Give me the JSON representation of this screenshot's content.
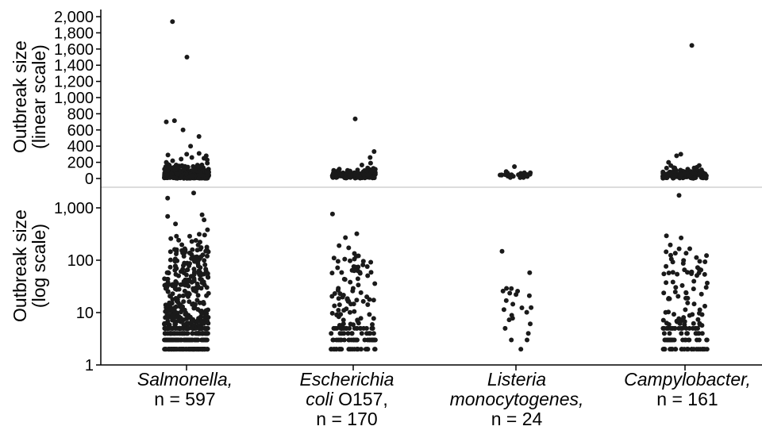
{
  "chart_data": [
    {
      "type": "scatter",
      "panel": "top",
      "ylabel_line1": "Outbreak size",
      "ylabel_line2": "(linear scale)",
      "yscale": "linear",
      "ylim": [
        0,
        2000
      ],
      "yticks": [
        0,
        200,
        400,
        600,
        800,
        1000,
        1200,
        1400,
        1600,
        1800,
        2000
      ],
      "ytick_labels": [
        "0",
        "200",
        "400",
        "600",
        "800",
        "1,000",
        "1,200",
        "1,400",
        "1,600",
        "1,800",
        "2,000"
      ],
      "grid": false,
      "categories": [
        "Salmonella, n = 597",
        "Escherichia coli O157, n = 170",
        "Listeria monocytogenes, n = 24",
        "Campylobacter, n = 161"
      ]
    },
    {
      "type": "scatter",
      "panel": "bottom",
      "ylabel_line1": "Outbreak size",
      "ylabel_line2": "(log scale)",
      "yscale": "log",
      "ylim": [
        1,
        2000
      ],
      "yticks": [
        1,
        10,
        100,
        1000
      ],
      "ytick_labels": [
        "1",
        "10",
        "100",
        "1,000"
      ],
      "grid": false,
      "categories": [
        "Salmonella, n = 597",
        "Escherichia coli O157, n = 170",
        "Listeria monocytogenes, n = 24",
        "Campylobacter, n = 161"
      ]
    }
  ],
  "categories": [
    {
      "name": "Salmonella,",
      "count_label": "n = 597",
      "n": 597,
      "max_outbreaks": [
        1939,
        1500,
        715,
        700,
        600,
        520,
        400,
        310,
        300,
        290,
        280,
        260,
        250,
        240,
        230,
        220,
        200,
        190,
        180,
        170
      ]
    },
    {
      "name_line1": "Escherichia",
      "name_line2": "coli",
      "name_suffix": "O157,",
      "count_label": "n = 170",
      "n": 170,
      "max_outbreaks": [
        736,
        333,
        260,
        190,
        130,
        100,
        90,
        80,
        75,
        70,
        65,
        60
      ]
    },
    {
      "name_line1": "Listeria",
      "name_line2": "monocytogenes,",
      "count_label": "n = 24",
      "n": 24,
      "values": [
        147,
        55,
        30,
        28,
        27,
        26,
        24,
        22,
        20,
        17,
        14,
        13,
        12,
        11,
        10,
        9,
        8,
        7,
        6,
        5,
        4,
        3,
        3,
        2
      ]
    },
    {
      "name": "Campylobacter,",
      "count_label": "n = 161",
      "n": 161,
      "max_outbreaks": [
        1644,
        300,
        280,
        200,
        140,
        130,
        100,
        90,
        85,
        80,
        70,
        60
      ]
    }
  ],
  "colors": {
    "point": "#1a1a1a",
    "axis": "#000000",
    "divider": "#d0d0d0"
  }
}
